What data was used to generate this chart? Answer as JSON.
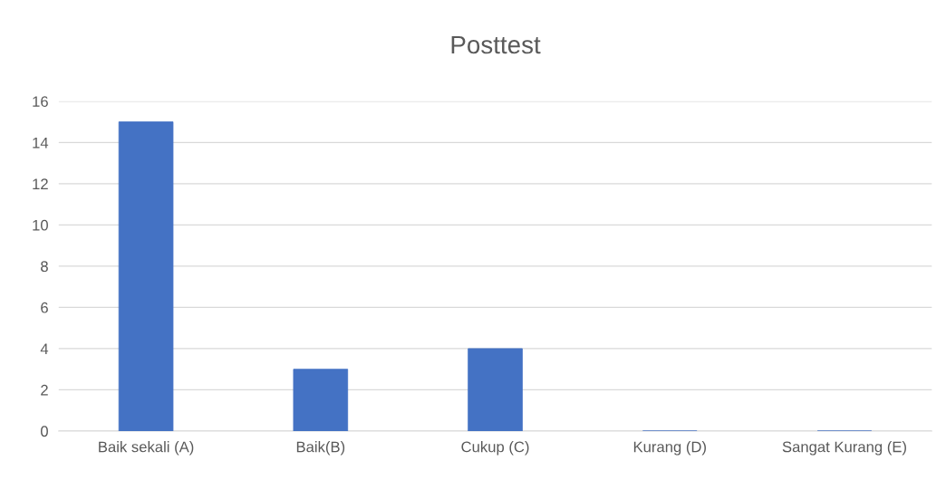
{
  "chart_data": {
    "type": "bar",
    "title": "Posttest",
    "categories": [
      "Baik sekali (A)",
      "Baik(B)",
      "Cukup (C)",
      "Kurang (D)",
      "Sangat Kurang (E)"
    ],
    "values": [
      15,
      3,
      4,
      0,
      0
    ],
    "color": "#4472c4",
    "ylim": [
      0,
      16
    ],
    "yticks": [
      0,
      2,
      4,
      6,
      8,
      10,
      12,
      14,
      16
    ],
    "grid": "y",
    "legend": false
  }
}
